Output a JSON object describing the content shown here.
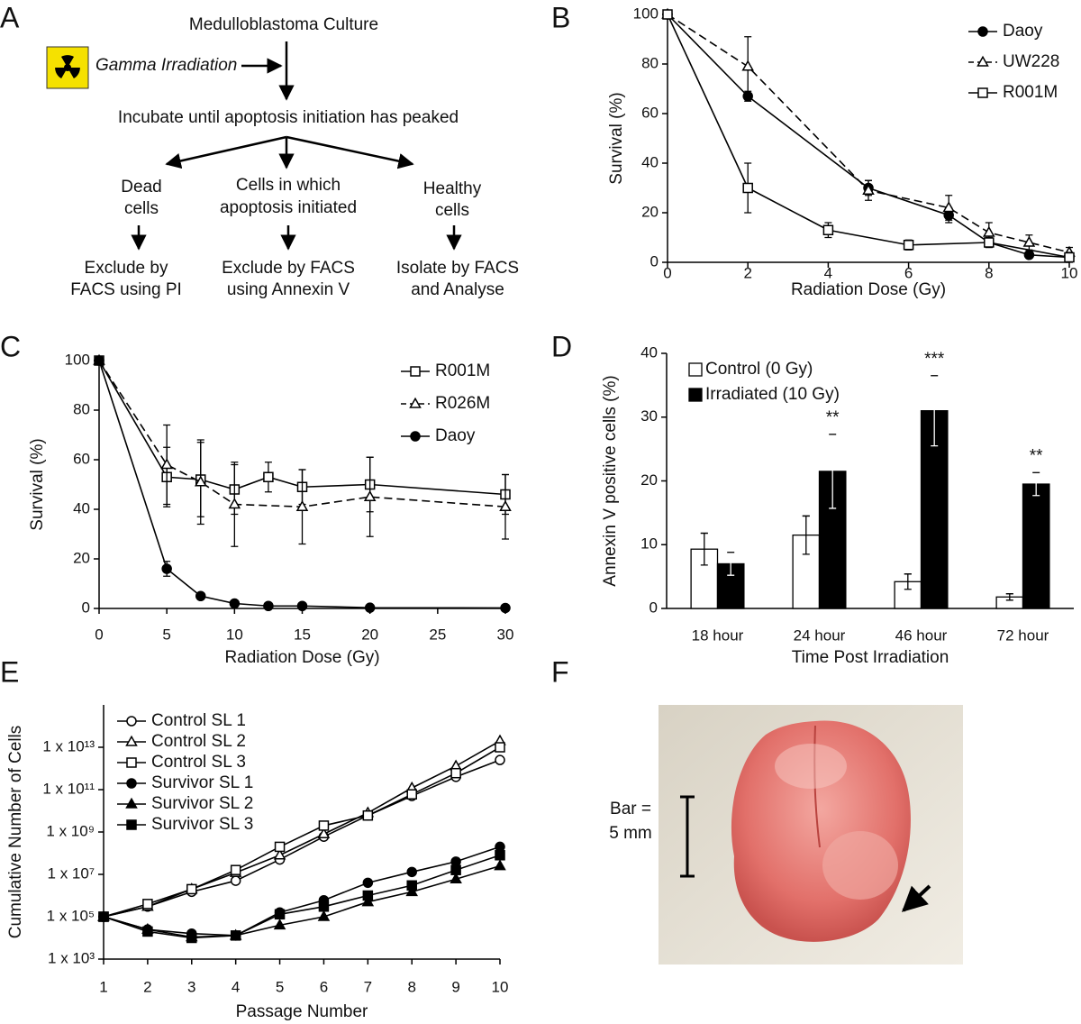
{
  "panel_labels": [
    "A",
    "B",
    "C",
    "D",
    "E",
    "F"
  ],
  "diagram": {
    "culture": "Medulloblastoma Culture",
    "irradiation": "Gamma Irradiation",
    "incubate": "Incubate until apoptosis initiation has peaked",
    "populations": [
      {
        "lines": [
          "Dead",
          "cells"
        ],
        "action": [
          "Exclude by",
          "FACS using PI"
        ]
      },
      {
        "lines": [
          "Cells in which",
          "apoptosis initiated"
        ],
        "action": [
          "Exclude by FACS",
          "using Annexin V"
        ]
      },
      {
        "lines": [
          "Healthy",
          "cells"
        ],
        "action": [
          "Isolate by FACS",
          "and Analyse"
        ]
      }
    ]
  },
  "chart_data": [
    {
      "type": "line",
      "xlabel": "Radiation Dose (Gy)",
      "ylabel": "Survival (%)",
      "xlim": [
        0,
        10
      ],
      "xticks": [
        0,
        2,
        4,
        6,
        8,
        10
      ],
      "ylim": [
        0,
        100
      ],
      "yticks": [
        0,
        20,
        40,
        60,
        80,
        100
      ],
      "legend": "upper right",
      "series": [
        {
          "name": "Daoy",
          "color": "#000000",
          "marker": "circle",
          "fill": "#000000",
          "dashed": false,
          "x": [
            0,
            2,
            5,
            7,
            8,
            9,
            10
          ],
          "values": [
            100,
            67,
            30,
            19,
            8,
            3,
            2
          ],
          "errors": [
            1,
            2,
            3,
            3,
            2,
            1,
            1
          ]
        },
        {
          "name": "UW228",
          "color": "#000000",
          "marker": "triangle",
          "fill": "#ffffff",
          "dashed": true,
          "x": [
            0,
            2,
            5,
            7,
            8,
            9,
            10
          ],
          "values": [
            100,
            79,
            29,
            22,
            12,
            8,
            4
          ],
          "errors": [
            1,
            12,
            4,
            5,
            4,
            3,
            2
          ]
        },
        {
          "name": "R001M",
          "color": "#000000",
          "marker": "square",
          "fill": "#ffffff",
          "dashed": false,
          "x": [
            0,
            2,
            4,
            6,
            8,
            10
          ],
          "values": [
            100,
            30,
            13,
            7,
            8,
            2
          ],
          "errors": [
            1,
            10,
            3,
            2,
            2,
            2
          ]
        }
      ]
    },
    {
      "type": "line",
      "xlabel": "Radiation Dose (Gy)",
      "ylabel": "Survival (%)",
      "xlim": [
        0,
        30
      ],
      "xticks": [
        0,
        5,
        10,
        15,
        20,
        25,
        30
      ],
      "ylim": [
        0,
        100
      ],
      "yticks": [
        0,
        20,
        40,
        60,
        80,
        100
      ],
      "legend": "upper right",
      "series": [
        {
          "name": "R001M",
          "color": "#000000",
          "marker": "square",
          "fill": "#ffffff",
          "dashed": false,
          "x": [
            0,
            5,
            7.5,
            10,
            12.5,
            15,
            20,
            30
          ],
          "values": [
            100,
            53,
            52,
            48,
            53,
            49,
            50,
            46
          ],
          "errors": [
            1,
            12,
            15,
            10,
            6,
            7,
            11,
            8
          ]
        },
        {
          "name": "R026M",
          "color": "#000000",
          "marker": "triangle",
          "fill": "#ffffff",
          "dashed": true,
          "x": [
            0,
            5,
            7.5,
            10,
            15,
            20,
            30
          ],
          "values": [
            100,
            58,
            51,
            42,
            41,
            45,
            41
          ],
          "errors": [
            1,
            16,
            17,
            17,
            15,
            16,
            13
          ]
        },
        {
          "name": "Daoy",
          "color": "#000000",
          "marker": "circle",
          "fill": "#000000",
          "dashed": false,
          "x": [
            0,
            5,
            7.5,
            10,
            12.5,
            15,
            20,
            30
          ],
          "values": [
            100,
            16,
            5,
            2,
            1,
            1,
            0.3,
            0.2
          ],
          "errors": [
            1,
            3,
            1,
            0.5,
            0.3,
            0.3,
            0.2,
            0.2
          ]
        }
      ]
    },
    {
      "type": "bar",
      "xlabel": "Time Post Irradiation",
      "ylabel": "Annexin V positive cells (%)",
      "categories": [
        "18 hour",
        "24 hour",
        "46 hour",
        "72 hour"
      ],
      "ylim": [
        0,
        40
      ],
      "yticks": [
        0,
        10,
        20,
        30,
        40
      ],
      "legend": "upper left",
      "series": [
        {
          "name": "Control (0 Gy)",
          "color": "#ffffff",
          "values": [
            9.3,
            11.5,
            4.2,
            1.8
          ],
          "errors": [
            2.5,
            3,
            1.2,
            0.5
          ]
        },
        {
          "name": "Irradiated (10 Gy)",
          "color": "#000000",
          "values": [
            7,
            21.5,
            31,
            19.5
          ],
          "errors": [
            1.8,
            5.8,
            5.5,
            1.8
          ]
        }
      ],
      "annotations": [
        {
          "category": "24 hour",
          "text": "**"
        },
        {
          "category": "46 hour",
          "text": "***"
        },
        {
          "category": "72 hour",
          "text": "**"
        }
      ]
    },
    {
      "type": "line",
      "xlabel": "Passage Number",
      "ylabel": "Cumulative Number of Cells",
      "yscale": "log",
      "x": [
        1,
        2,
        3,
        4,
        5,
        6,
        7,
        8,
        9,
        10
      ],
      "xlim": [
        1,
        10
      ],
      "xticks": [
        1,
        2,
        3,
        4,
        5,
        6,
        7,
        8,
        9,
        10
      ],
      "ylim": [
        1000,
        1000000000000000.0
      ],
      "yticks": [
        {
          "value": 1000,
          "label": "1 x 10³"
        },
        {
          "value": 100000,
          "label": "1 x 10⁵"
        },
        {
          "value": 10000000,
          "label": "1 x 10⁷"
        },
        {
          "value": 1000000000,
          "label": "1 x 10⁹"
        },
        {
          "value": 100000000000,
          "label": "1 x 10¹¹"
        },
        {
          "value": 10000000000000,
          "label": "1 x 10¹³"
        }
      ],
      "legend": "upper left",
      "series": [
        {
          "name": "Control SL 1",
          "color": "#000000",
          "marker": "circle",
          "fill": "#ffffff",
          "dashed": false,
          "values": [
            100000.0,
            300000.0,
            1500000.0,
            5000000.0,
            50000000.0,
            600000000.0,
            6000000000.0,
            50000000000.0,
            400000000000.0,
            2500000000000.0
          ]
        },
        {
          "name": "Control SL 2",
          "color": "#000000",
          "marker": "triangle",
          "fill": "#ffffff",
          "dashed": false,
          "values": [
            100000.0,
            300000.0,
            2000000.0,
            12000000.0,
            80000000.0,
            800000000.0,
            8000000000.0,
            120000000000.0,
            1300000000000.0,
            20000000000000.0
          ]
        },
        {
          "name": "Control SL 3",
          "color": "#000000",
          "marker": "square",
          "fill": "#ffffff",
          "dashed": false,
          "values": [
            100000.0,
            400000.0,
            2000000.0,
            16000000.0,
            200000000.0,
            2000000000.0,
            6000000000.0,
            60000000000.0,
            600000000000.0,
            10000000000000.0
          ]
        },
        {
          "name": "Survivor SL 1",
          "color": "#000000",
          "marker": "circle",
          "fill": "#000000",
          "dashed": false,
          "values": [
            100000.0,
            25000.0,
            16000.0,
            13000.0,
            160000.0,
            600000.0,
            4000000.0,
            13000000.0,
            40000000.0,
            200000000.0
          ]
        },
        {
          "name": "Survivor SL 2",
          "color": "#000000",
          "marker": "triangle",
          "fill": "#000000",
          "dashed": false,
          "values": [
            100000.0,
            25000.0,
            11000.0,
            13000.0,
            40000.0,
            100000.0,
            500000.0,
            1500000.0,
            6000000.0,
            25000000.0
          ]
        },
        {
          "name": "Survivor SL 3",
          "color": "#000000",
          "marker": "square",
          "fill": "#000000",
          "dashed": false,
          "values": [
            100000.0,
            20000.0,
            10000.0,
            13000.0,
            130000.0,
            300000.0,
            1000000.0,
            3000000.0,
            16000000.0,
            80000000.0
          ]
        }
      ]
    }
  ],
  "photo": {
    "scale_label": [
      "Bar =",
      "5 mm"
    ]
  }
}
